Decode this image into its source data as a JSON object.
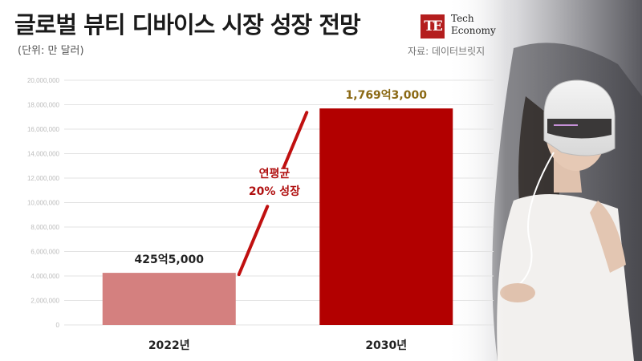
{
  "header": {
    "title": "글로벌 뷰티 디바이스 시장 성장 전망",
    "unit": "(단위: 만 달러)",
    "source": "자료: 데이터브릿지",
    "logo_mark": "TE",
    "brand": "Tech\nEconomy"
  },
  "colors": {
    "bar_2022": "#d4807f",
    "bar_2030": "#b20000",
    "arrow": "#c01010",
    "grid": "#e3e3e3"
  },
  "chart_data": {
    "type": "bar",
    "categories": [
      "2022년",
      "2030년"
    ],
    "values": [
      4255000,
      17693000
    ],
    "value_labels": [
      "425억5,000",
      "1,769억3,000"
    ],
    "y_ticks": [
      "0",
      "2,000,000",
      "4,000,000",
      "6,000,000",
      "8,000,000",
      "10,000,000",
      "12,000,000",
      "14,000,000",
      "16,000,000",
      "18,000,000",
      "20,000,000"
    ],
    "ylim": [
      0,
      20000000
    ],
    "annotation": [
      "연평균",
      "20% 성장"
    ],
    "grid": true
  }
}
